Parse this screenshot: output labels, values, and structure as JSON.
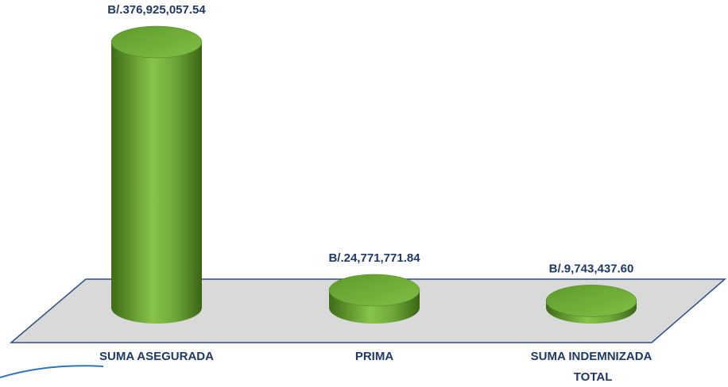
{
  "chart_data": {
    "type": "bar",
    "categories": [
      "SUMA ASEGURADA",
      "PRIMA",
      "SUMA INDEMNIZADA TOTAL"
    ],
    "values": [
      376925057.54,
      24771771.84,
      9743437.6
    ],
    "value_labels": [
      "B/.376,925,057.54",
      "B/.24,771,771.84",
      "B/.9,743,437.60"
    ],
    "color": "#70ad47"
  }
}
